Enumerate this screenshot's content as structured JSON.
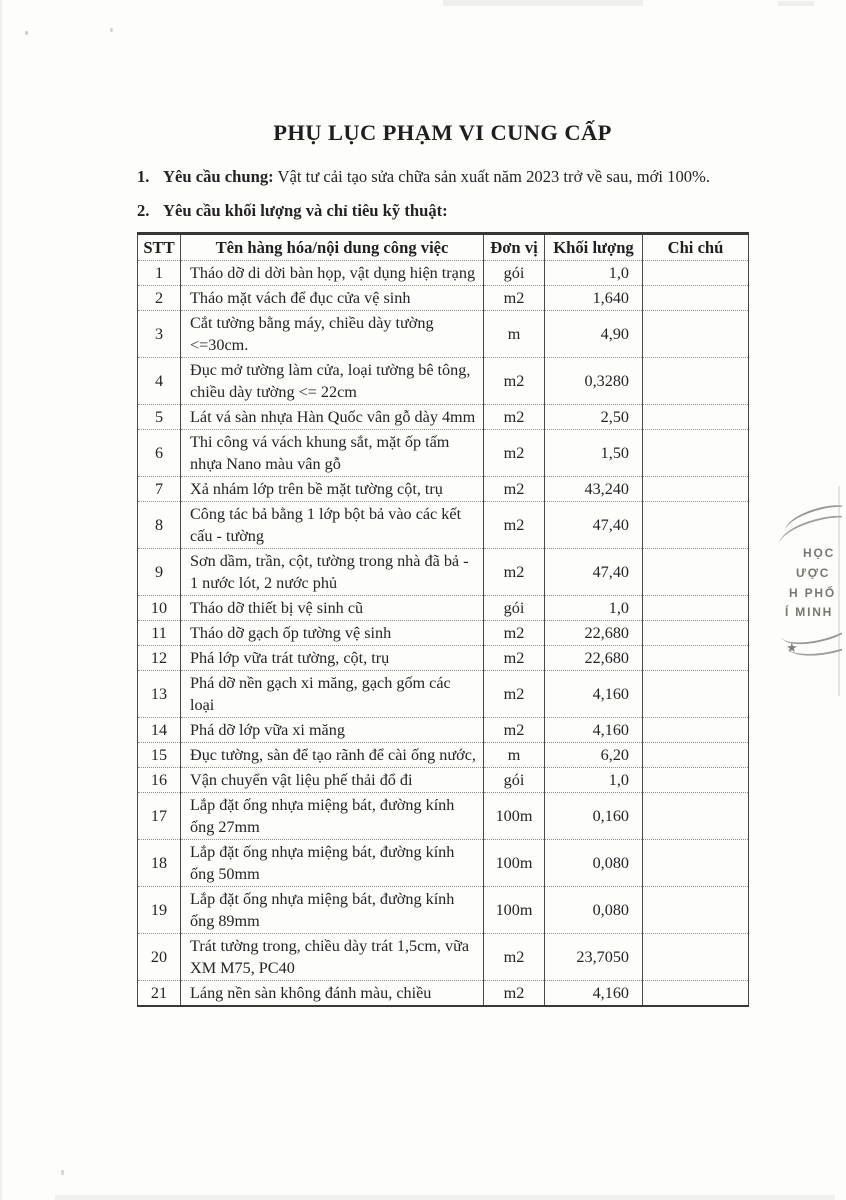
{
  "doc": {
    "title": "PHỤ LỤC PHẠM VI CUNG CẤP",
    "items": [
      {
        "number": "1.",
        "label": "Yêu cầu chung:",
        "text": " Vật tư cải tạo sửa chữa sản xuất năm 2023 trở về sau, mới 100%."
      },
      {
        "number": "2.",
        "label": "Yêu cầu khối lượng và chỉ tiêu kỹ thuật:",
        "text": ""
      }
    ]
  },
  "table": {
    "headers": {
      "stt": "STT",
      "name": "Tên hàng hóa/nội dung công việc",
      "unit": "Đơn vị",
      "qty": "Khối lượng",
      "note": "Chi chú"
    },
    "rows": [
      {
        "stt": "1",
        "name": "Tháo dỡ di dời bàn họp, vật dụng hiện trạng",
        "unit": "gói",
        "qty": "1,0",
        "note": ""
      },
      {
        "stt": "2",
        "name": "Tháo mặt vách để đục cửa vệ sinh",
        "unit": "m2",
        "qty": "1,640",
        "note": ""
      },
      {
        "stt": "3",
        "name": "Cắt tường bằng máy, chiều dày tường <=30cm.",
        "unit": "m",
        "qty": "4,90",
        "note": ""
      },
      {
        "stt": "4",
        "name": "Đục mở tường làm cửa, loại tường bê tông, chiều dày tường <= 22cm",
        "unit": "m2",
        "qty": "0,3280",
        "note": ""
      },
      {
        "stt": "5",
        "name": "Lát vá sàn nhựa Hàn Quốc vân gỗ dày 4mm",
        "unit": "m2",
        "qty": "2,50",
        "note": ""
      },
      {
        "stt": "6",
        "name": "Thi công vá vách khung sắt, mặt ốp tấm nhựa Nano màu vân gỗ",
        "unit": "m2",
        "qty": "1,50",
        "note": ""
      },
      {
        "stt": "7",
        "name": "Xả nhám lớp trên bề mặt tường cột, trụ",
        "unit": "m2",
        "qty": "43,240",
        "note": ""
      },
      {
        "stt": "8",
        "name": "Công tác bả bằng 1 lớp bột bả vào các kết cấu - tường",
        "unit": "m2",
        "qty": "47,40",
        "note": ""
      },
      {
        "stt": "9",
        "name": "Sơn dầm, trần, cột, tường trong nhà đã bả - 1 nước lót, 2 nước phủ",
        "unit": "m2",
        "qty": "47,40",
        "note": ""
      },
      {
        "stt": "10",
        "name": "Tháo dỡ thiết bị vệ sinh cũ",
        "unit": "gói",
        "qty": "1,0",
        "note": ""
      },
      {
        "stt": "11",
        "name": "Tháo dỡ gạch ốp tường vệ sinh",
        "unit": "m2",
        "qty": "22,680",
        "note": ""
      },
      {
        "stt": "12",
        "name": "Phá lớp vữa trát tường, cột, trụ",
        "unit": "m2",
        "qty": "22,680",
        "note": ""
      },
      {
        "stt": "13",
        "name": "Phá dỡ nền gạch xi măng, gạch gốm các loại",
        "unit": "m2",
        "qty": "4,160",
        "note": ""
      },
      {
        "stt": "14",
        "name": "Phá dỡ lớp vữa xi măng",
        "unit": "m2",
        "qty": "4,160",
        "note": ""
      },
      {
        "stt": "15",
        "name": "Đục tường, sàn để tạo rãnh để cài ống nước,",
        "unit": "m",
        "qty": "6,20",
        "note": ""
      },
      {
        "stt": "16",
        "name": "Vận chuyển vật liệu phế thải đổ đi",
        "unit": "gói",
        "qty": "1,0",
        "note": ""
      },
      {
        "stt": "17",
        "name": "Lắp đặt ống nhựa miệng bát, đường kính ống 27mm",
        "unit": "100m",
        "qty": "0,160",
        "note": ""
      },
      {
        "stt": "18",
        "name": "Lắp đặt ống nhựa miệng bát, đường kính ống 50mm",
        "unit": "100m",
        "qty": "0,080",
        "note": ""
      },
      {
        "stt": "19",
        "name": "Lắp đặt ống nhựa miệng bát, đường kính ống 89mm",
        "unit": "100m",
        "qty": "0,080",
        "note": ""
      },
      {
        "stt": "20",
        "name": "Trát tường trong, chiều dày trát 1,5cm, vữa XM M75, PC40",
        "unit": "m2",
        "qty": "23,7050",
        "note": ""
      },
      {
        "stt": "21",
        "name": "Láng nền sàn không đánh màu, chiều",
        "unit": "m2",
        "qty": "4,160",
        "note": ""
      }
    ]
  },
  "stamp": {
    "lines": [
      "HỌC",
      "ƯỢC",
      "H PHỐ",
      "Í MINH"
    ],
    "star": "★",
    "ink_color": "#6d6d63"
  }
}
